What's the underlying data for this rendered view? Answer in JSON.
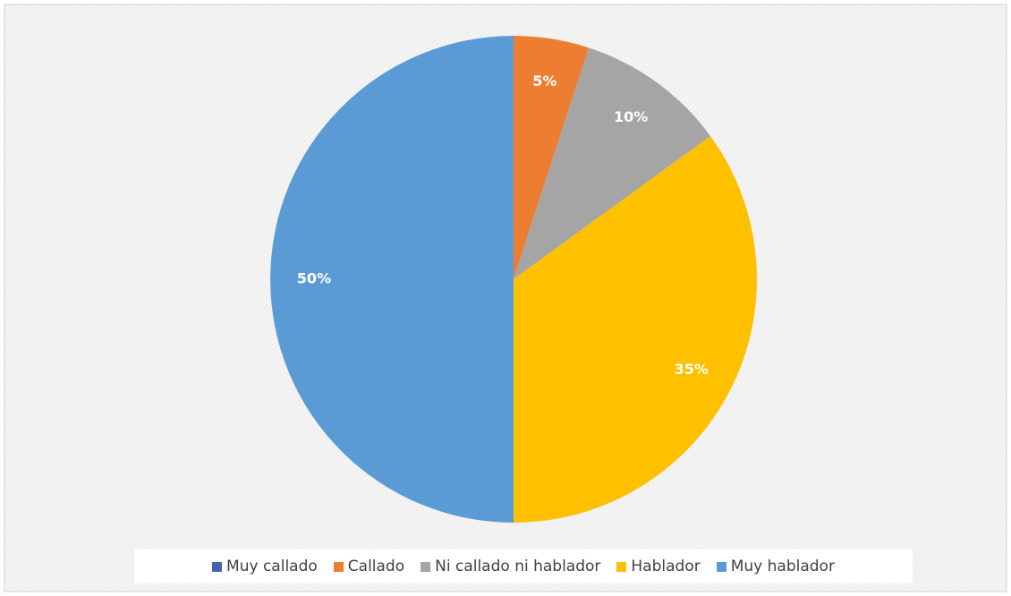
{
  "chart_data": {
    "type": "pie",
    "categories": [
      "Muy callado",
      "Callado",
      "Ni callado ni hablador",
      "Hablador",
      "Muy hablador"
    ],
    "values": [
      0,
      5,
      10,
      35,
      50
    ],
    "value_labels": [
      null,
      "5%",
      "10%",
      "35%",
      "50%"
    ],
    "colors": [
      "#4264ad",
      "#ed7d31",
      "#a5a5a5",
      "#ffc000",
      "#5b9bd5"
    ],
    "legend": "bottom"
  }
}
